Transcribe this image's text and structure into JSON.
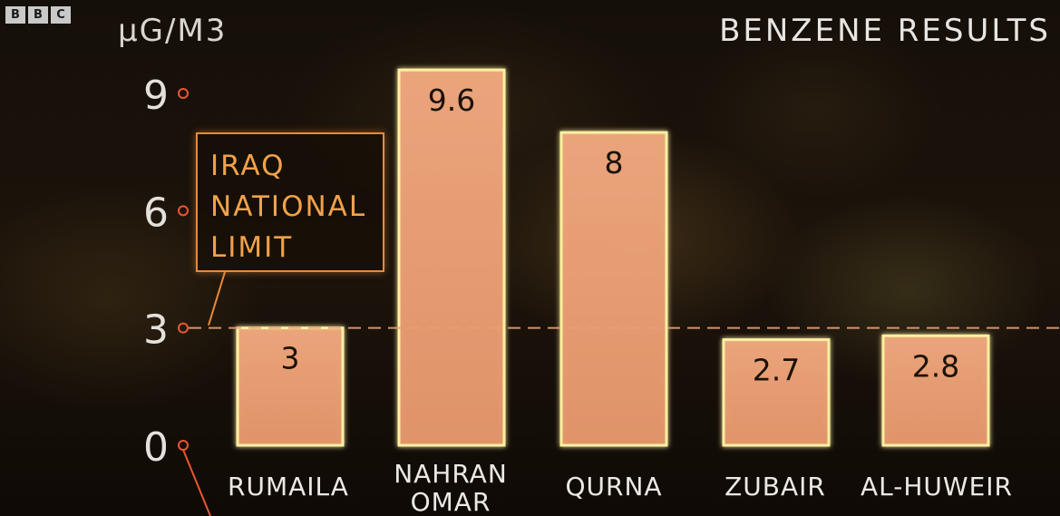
{
  "logo": [
    "B",
    "B",
    "C"
  ],
  "header": {
    "unit": "µG/M3",
    "title": "BENZENE RESULTS"
  },
  "limit_label": [
    "IRAQ",
    "NATIONAL",
    "LIMIT"
  ],
  "colors": {
    "axis": "#e8582e",
    "limit_line": "#e9a074",
    "bar_fill": "#e9a27a",
    "bar_stroke": "#fdf0a0",
    "limit_box": "#e88a3a",
    "limit_text": "#f0a24a"
  },
  "chart_data": {
    "type": "bar",
    "title": "BENZENE RESULTS",
    "ylabel": "µG/M3",
    "xlabel": "",
    "categories": [
      [
        "RUMAILA"
      ],
      [
        "NAHRAN",
        "OMAR"
      ],
      [
        "QURNA"
      ],
      [
        "ZUBAIR"
      ],
      [
        "AL-HUWEIR"
      ]
    ],
    "values": [
      3,
      9.6,
      8,
      2.7,
      2.8
    ],
    "value_labels": [
      "3",
      "9.6",
      "8",
      "2.7",
      "2.8"
    ],
    "yticks": [
      0,
      3,
      6,
      9
    ],
    "ylim": [
      0,
      9.9
    ],
    "reference_line": {
      "value": 3,
      "label": "IRAQ NATIONAL LIMIT"
    },
    "grid": false,
    "legend": "none"
  }
}
